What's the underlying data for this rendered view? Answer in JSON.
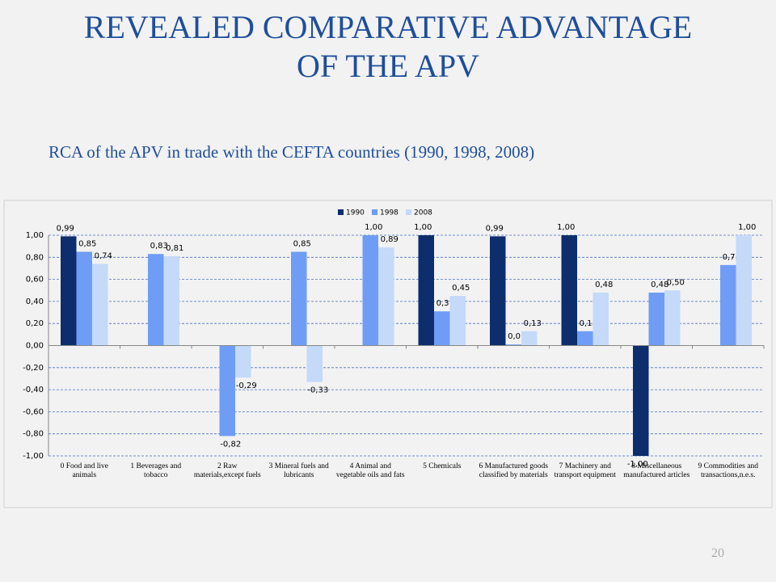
{
  "chart_data": {
    "type": "bar",
    "title": "REVEALED COMPARATIVE ADVANTAGE OF THE APV",
    "subtitle": "RCA of the APV in trade with the CEFTA countries (1990, 1998, 2008)",
    "categories": [
      "0 Food and live animals",
      "1 Beverages and tobacco",
      "2 Raw materials,except fuels",
      "3 Mineral fuels and lubricants",
      "4 Animal and vegetable oils and fats",
      "5 Chemicals",
      "6 Manufactured goods classified by materials",
      "7 Machinery and transport equipment",
      "8 Miscellaneous manufactured articles",
      "9 Commodities and transactions,n.e.s."
    ],
    "series": [
      {
        "name": "1990",
        "color": "#0d2d6c",
        "values": [
          0.99,
          null,
          null,
          null,
          null,
          1.0,
          0.99,
          1.0,
          -1.0,
          null
        ],
        "value_labels": [
          "0,99",
          null,
          null,
          null,
          null,
          "1,00",
          "0,99",
          "1,00",
          "-1,00",
          null
        ]
      },
      {
        "name": "1998",
        "color": "#6f9df5",
        "values": [
          0.85,
          0.83,
          -0.82,
          0.85,
          1.0,
          0.31,
          0.01,
          0.13,
          0.48,
          0.73
        ],
        "value_labels": [
          "0,85",
          "0,83",
          "-0,82",
          "0,85",
          "1,00",
          "0,31",
          "0,01",
          "0,13",
          "0,48",
          "0,73"
        ]
      },
      {
        "name": "2008",
        "color": "#c5d9f9",
        "values": [
          0.74,
          0.81,
          -0.29,
          -0.33,
          0.89,
          0.45,
          0.13,
          0.48,
          0.5,
          1.0
        ],
        "value_labels": [
          "0,74",
          "0,81",
          "-0,29",
          "-0,33",
          "0,89",
          "0,45",
          "0,13",
          "0,48",
          "0,50",
          "1,00"
        ]
      }
    ],
    "ylim": [
      -1,
      1
    ],
    "yticks": [
      {
        "value": -1,
        "label": "-1,00"
      },
      {
        "value": -0.8,
        "label": "-0,80"
      },
      {
        "value": -0.6,
        "label": "-0,60"
      },
      {
        "value": -0.4,
        "label": "-0,40"
      },
      {
        "value": -0.2,
        "label": "-0,20"
      },
      {
        "value": 0,
        "label": "0,00"
      },
      {
        "value": 0.2,
        "label": "0,20"
      },
      {
        "value": 0.4,
        "label": "0,40"
      },
      {
        "value": 0.6,
        "label": "0,60"
      },
      {
        "value": 0.8,
        "label": "0,80"
      },
      {
        "value": 1,
        "label": "1,00"
      }
    ],
    "grid": true,
    "legend": "top"
  },
  "slide_number": "20"
}
